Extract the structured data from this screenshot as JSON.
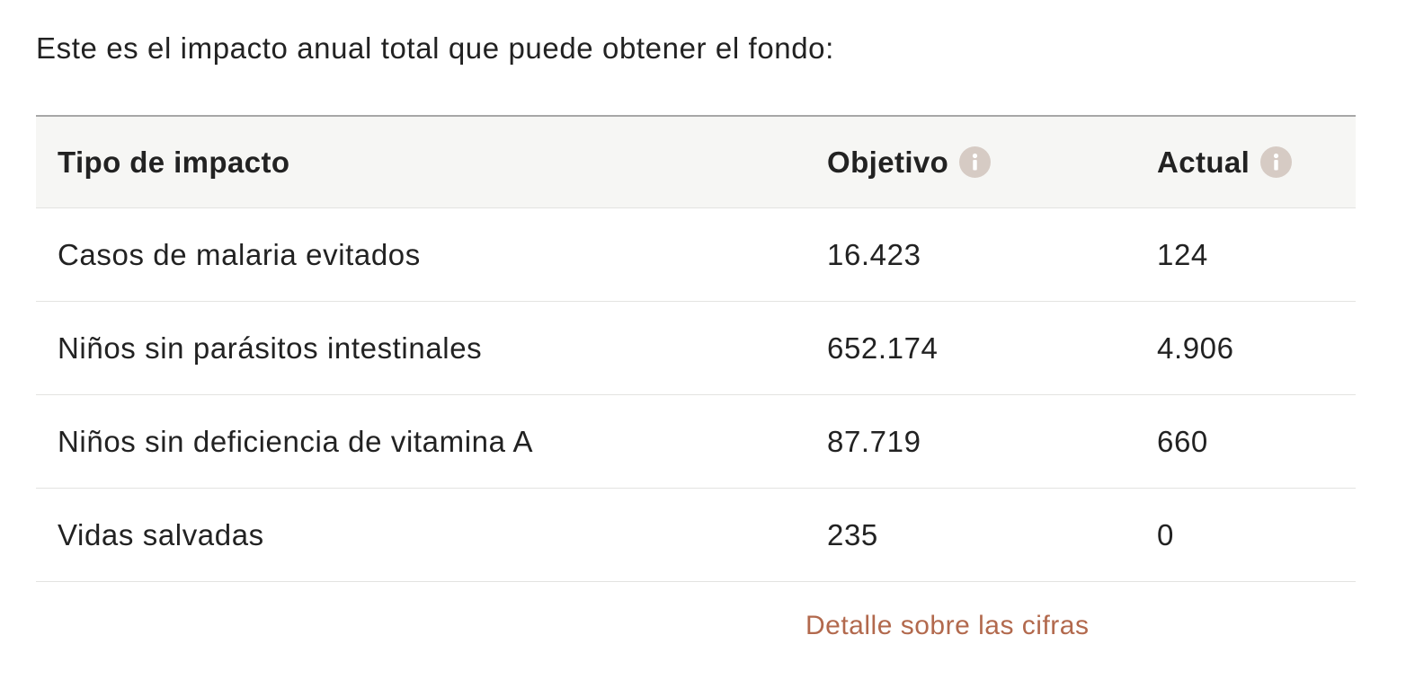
{
  "intro_text": "Este es el impacto anual total que puede obtener el fondo:",
  "table": {
    "headers": {
      "type": "Tipo de impacto",
      "target": "Objetivo",
      "current": "Actual"
    },
    "rows": [
      {
        "type": "Casos de malaria evitados",
        "target": "16.423",
        "current": "124"
      },
      {
        "type": "Niños sin parásitos intestinales",
        "target": "652.174",
        "current": "4.906"
      },
      {
        "type": "Niños sin deficiencia de vitamina A",
        "target": "87.719",
        "current": "660"
      },
      {
        "type": "Vidas salvadas",
        "target": "235",
        "current": "0"
      }
    ]
  },
  "detail_link": "Detalle sobre las cifras",
  "colors": {
    "link": "#b2694d",
    "info_icon": "#d6cbc4",
    "header_bg": "#f6f6f4"
  },
  "icons": {
    "header_info": "info-icon"
  }
}
